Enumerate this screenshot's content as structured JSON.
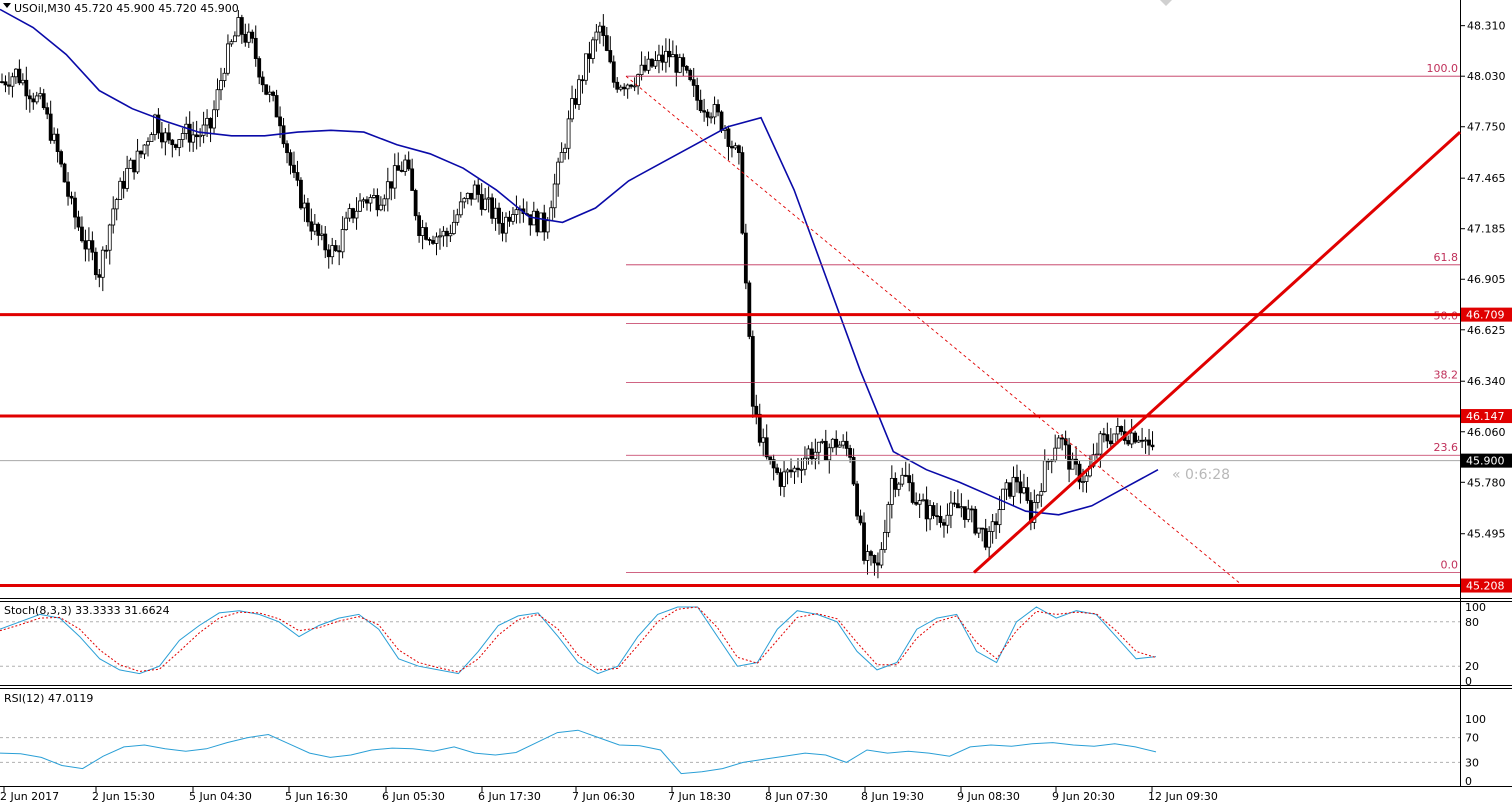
{
  "header": {
    "symbol_line": "USOil,M30  45.720 45.900 45.720 45.900"
  },
  "countdown": "« 0:6:28",
  "colors": {
    "background": "#ffffff",
    "candle": "#000000",
    "ma": "#0a0aa8",
    "support_resistance": "#e00000",
    "fib": "#c0305a",
    "stoch_main": "#2a9fd6",
    "stoch_signal": "#e00000",
    "rsi": "#2a9fd6",
    "current_price_label_bg": "#000000",
    "level_label_bg": "#e00000"
  },
  "chart_data": [
    {
      "type": "candlestick",
      "title": "USOil,M30",
      "ohlc_last": {
        "open": 45.72,
        "high": 45.9,
        "low": 45.72,
        "close": 45.9
      },
      "ylim": [
        45.15,
        48.43
      ],
      "y_ticks": [
        "48.310",
        "48.030",
        "47.750",
        "47.465",
        "47.185",
        "46.905",
        "46.625",
        "46.340",
        "46.060",
        "45.780",
        "45.495"
      ],
      "x_labels": [
        "2 Jun 2017",
        "2 Jun 15:30",
        "5 Jun 04:30",
        "5 Jun 16:30",
        "6 Jun 05:30",
        "6 Jun 17:30",
        "7 Jun 06:30",
        "7 Jun 18:30",
        "8 Jun 07:30",
        "8 Jun 19:30",
        "9 Jun 08:30",
        "9 Jun 20:30",
        "12 Jun 09:30"
      ],
      "series": [
        {
          "name": "Close (approx.)",
          "values": [
            48.0,
            48.05,
            47.95,
            47.85,
            47.6,
            47.3,
            47.1,
            46.95,
            47.3,
            47.5,
            47.6,
            47.8,
            47.65,
            47.72,
            47.7,
            47.75,
            48.1,
            48.3,
            48.2,
            47.95,
            47.8,
            47.45,
            47.25,
            47.1,
            47.05,
            47.25,
            47.35,
            47.35,
            47.45,
            47.55,
            47.2,
            47.15,
            47.15,
            47.3,
            47.4,
            47.3,
            47.2,
            47.35,
            47.25,
            47.2,
            47.5,
            47.85,
            48.1,
            48.3,
            48.0,
            48.0,
            48.05,
            48.1,
            48.15,
            48.05,
            47.9,
            47.85,
            47.75,
            47.55,
            46.2,
            45.9,
            45.8,
            45.85,
            45.95,
            45.95,
            46.0,
            45.95,
            45.35,
            45.3,
            45.8,
            45.8,
            45.65,
            45.6,
            45.6,
            45.65,
            45.55,
            45.45,
            45.7,
            45.8,
            45.6,
            45.85,
            46.05,
            45.85,
            45.8,
            46.0,
            46.05,
            46.05,
            46.05,
            45.9
          ]
        },
        {
          "name": "Moving Average (approx.)",
          "values": [
            48.4,
            48.3,
            48.15,
            47.95,
            47.85,
            47.78,
            47.72,
            47.7,
            47.7,
            47.72,
            47.73,
            47.72,
            47.65,
            47.6,
            47.52,
            47.4,
            47.25,
            47.22,
            47.3,
            47.45,
            47.55,
            47.65,
            47.75,
            47.8,
            47.4,
            46.9,
            46.4,
            45.95,
            45.85,
            45.78,
            45.7,
            45.62,
            45.6,
            45.65,
            45.75,
            45.85
          ]
        }
      ],
      "horizontal_levels": [
        {
          "label": "46.709",
          "value": 46.709
        },
        {
          "label": "46.147",
          "value": 46.147
        },
        {
          "label": "45.208",
          "value": 45.208
        }
      ],
      "current_price": {
        "label": "45.900",
        "value": 45.9
      },
      "fibonacci": [
        {
          "label": "100.0",
          "value": 48.03
        },
        {
          "label": "61.8",
          "value": 46.985
        },
        {
          "label": "50.0",
          "value": 46.66
        },
        {
          "label": "38.2",
          "value": 46.333
        },
        {
          "label": "23.6",
          "value": 45.93
        },
        {
          "label": "0.0",
          "value": 45.28
        }
      ],
      "trendline": {
        "from_value": 45.28,
        "to_value": 47.72
      },
      "dashed_line": {
        "from_value": 48.03,
        "to_value": 45.22
      }
    },
    {
      "type": "line",
      "title": "Stoch(8,3,3) 33.3333 31.6624",
      "ylim": [
        0,
        100
      ],
      "y_ticks": [
        "100",
        "80",
        "20",
        "0"
      ],
      "levels": [
        80,
        20
      ],
      "series": [
        {
          "name": "Stoch main",
          "values": [
            70,
            80,
            90,
            85,
            60,
            30,
            15,
            10,
            20,
            55,
            75,
            92,
            95,
            90,
            80,
            60,
            75,
            85,
            90,
            70,
            30,
            20,
            15,
            10,
            40,
            75,
            88,
            92,
            60,
            25,
            10,
            20,
            60,
            90,
            100,
            100,
            60,
            20,
            25,
            70,
            95,
            90,
            80,
            40,
            15,
            25,
            70,
            85,
            90,
            40,
            25,
            80,
            100,
            85,
            95,
            90,
            60,
            30,
            33
          ]
        },
        {
          "name": "Stoch signal",
          "values": [
            68,
            76,
            85,
            86,
            70,
            42,
            22,
            13,
            16,
            40,
            65,
            85,
            93,
            92,
            84,
            68,
            72,
            81,
            87,
            76,
            42,
            25,
            18,
            12,
            30,
            62,
            83,
            90,
            70,
            35,
            15,
            17,
            48,
            80,
            97,
            100,
            72,
            32,
            24,
            55,
            86,
            91,
            84,
            52,
            22,
            22,
            58,
            80,
            88,
            52,
            30,
            68,
            94,
            90,
            93,
            91,
            68,
            40,
            31.66
          ]
        }
      ]
    },
    {
      "type": "line",
      "title": "RSI(12) 47.0119",
      "ylim": [
        0,
        100
      ],
      "y_ticks": [
        "100",
        "70",
        "30",
        "0"
      ],
      "levels": [
        70,
        30
      ],
      "series": [
        {
          "name": "RSI",
          "values": [
            45,
            44,
            38,
            25,
            20,
            40,
            55,
            58,
            52,
            48,
            52,
            62,
            70,
            75,
            60,
            45,
            38,
            42,
            50,
            53,
            52,
            48,
            55,
            45,
            42,
            46,
            62,
            78,
            82,
            70,
            58,
            57,
            50,
            12,
            15,
            20,
            30,
            35,
            40,
            45,
            42,
            30,
            50,
            45,
            48,
            45,
            40,
            55,
            58,
            56,
            60,
            62,
            58,
            56,
            60,
            55,
            47
          ]
        }
      ]
    }
  ]
}
